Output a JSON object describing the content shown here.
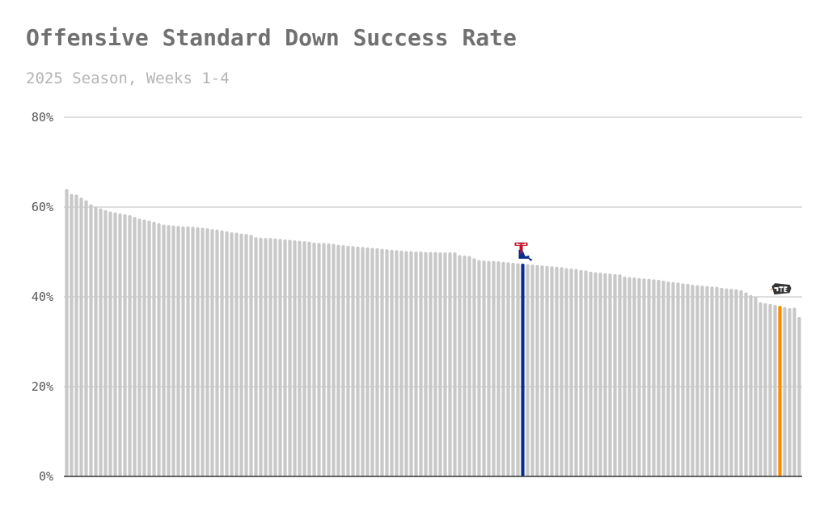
{
  "title": "Offensive Standard Down Success Rate",
  "subtitle": "2025 Season, Weeks 1-4",
  "chart_data": {
    "type": "bar",
    "title": "Offensive Standard Down Success Rate",
    "subtitle": "2025 Season, Weeks 1-4",
    "xlabel": "",
    "ylabel": "",
    "ylim": [
      0,
      80
    ],
    "yticks": [
      0,
      20,
      40,
      60,
      80
    ],
    "ytick_labels": [
      "0%",
      "20%",
      "40%",
      "60%",
      "80%"
    ],
    "grid": true,
    "default_color": "#c8c8c8",
    "highlights": [
      {
        "index": 94,
        "color": "#0a2f8c",
        "icon": "louisiana-tech-logo-icon"
      },
      {
        "index": 147,
        "color": "#ff8a00",
        "icon": "utep-logo-icon"
      }
    ],
    "values": [
      64.0,
      62.9,
      62.8,
      62.1,
      61.5,
      60.6,
      60.0,
      59.7,
      59.3,
      59.0,
      58.8,
      58.6,
      58.4,
      58.2,
      57.8,
      57.4,
      57.2,
      57.0,
      56.7,
      56.4,
      56.1,
      56.0,
      55.9,
      55.8,
      55.7,
      55.7,
      55.6,
      55.5,
      55.4,
      55.3,
      55.1,
      55.0,
      54.8,
      54.6,
      54.4,
      54.3,
      54.1,
      54.0,
      53.8,
      53.3,
      53.2,
      53.1,
      53.1,
      53.0,
      52.9,
      52.8,
      52.7,
      52.6,
      52.5,
      52.4,
      52.3,
      52.1,
      52.0,
      52.0,
      51.9,
      51.8,
      51.6,
      51.5,
      51.4,
      51.3,
      51.2,
      51.1,
      51.0,
      50.9,
      50.8,
      50.7,
      50.6,
      50.5,
      50.4,
      50.3,
      50.2,
      50.2,
      50.1,
      50.1,
      50.0,
      50.0,
      50.0,
      49.9,
      49.9,
      49.9,
      49.9,
      49.3,
      49.2,
      49.1,
      48.6,
      48.2,
      48.1,
      48.0,
      48.0,
      47.9,
      47.8,
      47.7,
      47.6,
      47.5,
      47.4,
      47.3,
      47.2,
      47.1,
      47.0,
      46.9,
      46.8,
      46.7,
      46.6,
      46.4,
      46.3,
      46.2,
      46.0,
      45.9,
      45.6,
      45.5,
      45.4,
      45.3,
      45.2,
      45.1,
      45.0,
      44.5,
      44.4,
      44.3,
      44.2,
      44.1,
      44.0,
      43.9,
      43.8,
      43.6,
      43.4,
      43.3,
      43.2,
      43.0,
      42.9,
      42.7,
      42.6,
      42.5,
      42.4,
      42.3,
      42.2,
      42.0,
      41.9,
      41.8,
      41.7,
      41.5,
      41.0,
      40.4,
      40.0,
      38.8,
      38.6,
      38.4,
      38.2,
      38.0,
      37.7,
      37.5,
      37.6,
      35.5
    ]
  }
}
